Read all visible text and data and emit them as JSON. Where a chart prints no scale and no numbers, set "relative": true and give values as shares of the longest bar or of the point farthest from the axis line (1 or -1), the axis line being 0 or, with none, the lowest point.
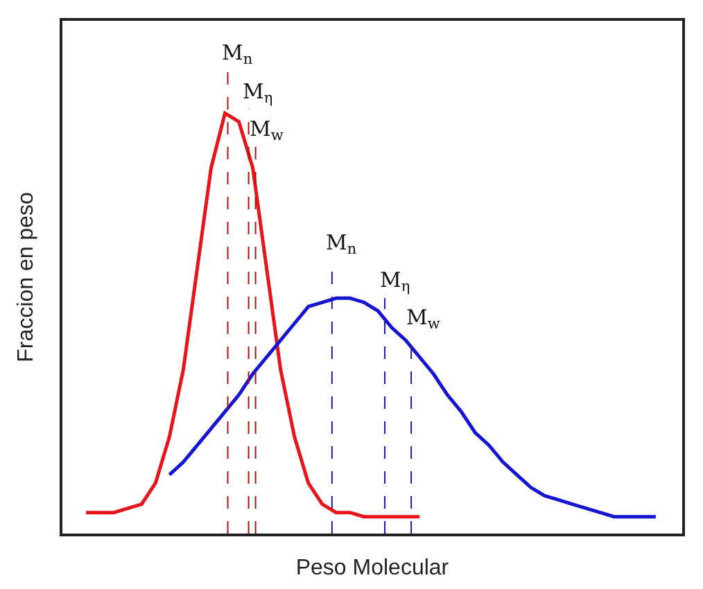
{
  "chart_data": {
    "type": "line",
    "relative": true,
    "xlabel": "Peso Molecular",
    "ylabel": "Fraccion en peso",
    "categories": [
      null,
      null,
      null,
      null,
      null,
      null,
      null,
      null,
      null,
      null,
      null,
      null,
      null,
      null,
      null,
      null,
      null,
      null,
      null,
      null,
      null,
      null,
      null,
      null,
      null,
      null,
      null,
      null,
      null,
      null,
      null,
      null,
      null,
      null,
      null,
      null,
      null,
      null,
      null,
      null,
      null,
      null,
      null
    ],
    "series": [
      {
        "color": "#e8141b",
        "values": [
          null,
          0.05,
          0.05,
          0.05,
          0.06,
          0.07,
          0.12,
          0.23,
          0.39,
          0.63,
          0.87,
          1,
          0.98,
          0.87,
          0.63,
          0.39,
          0.23,
          0.12,
          0.07,
          0.05,
          0.05,
          0.04,
          0.04,
          0.04,
          0.04,
          0.04,
          null,
          null,
          null,
          null,
          null,
          null,
          null,
          null,
          null,
          null,
          null,
          null,
          null,
          null,
          null,
          null,
          null
        ]
      },
      {
        "color": "#1414d2",
        "values": [
          null,
          null,
          null,
          null,
          null,
          null,
          null,
          0.14,
          0.17,
          0.21,
          0.25,
          0.29,
          0.33,
          0.38,
          0.42,
          0.46,
          0.5,
          0.54,
          0.55,
          0.56,
          0.56,
          0.55,
          0.53,
          0.49,
          0.46,
          0.42,
          0.38,
          0.33,
          0.29,
          0.24,
          0.21,
          0.17,
          0.14,
          0.11,
          0.09,
          0.08,
          0.07,
          0.06,
          0.05,
          0.04,
          0.04,
          0.04,
          0.04
        ]
      }
    ],
    "ref_lines": [
      {
        "axis": "x",
        "label": "M$_{n}$",
        "color": "#b01010",
        "line_style": "dashed"
      },
      {
        "axis": "x",
        "label": "M$_{η}$",
        "color": "#b01010",
        "line_style": "dashed"
      },
      {
        "axis": "x",
        "label": "M$_{w}$",
        "color": "#b01010",
        "line_style": "dashed"
      },
      {
        "axis": "x",
        "label": "M$_{n}$",
        "color": "#1a1aa0",
        "line_style": "dashed"
      },
      {
        "axis": "x",
        "label": "M$_{η}$",
        "color": "#1a1aa0",
        "line_style": "dashed"
      },
      {
        "axis": "x",
        "label": "M$_{w}$",
        "color": "#1a1aa0",
        "line_style": "dashed"
      }
    ],
    "line_style": "solid"
  }
}
